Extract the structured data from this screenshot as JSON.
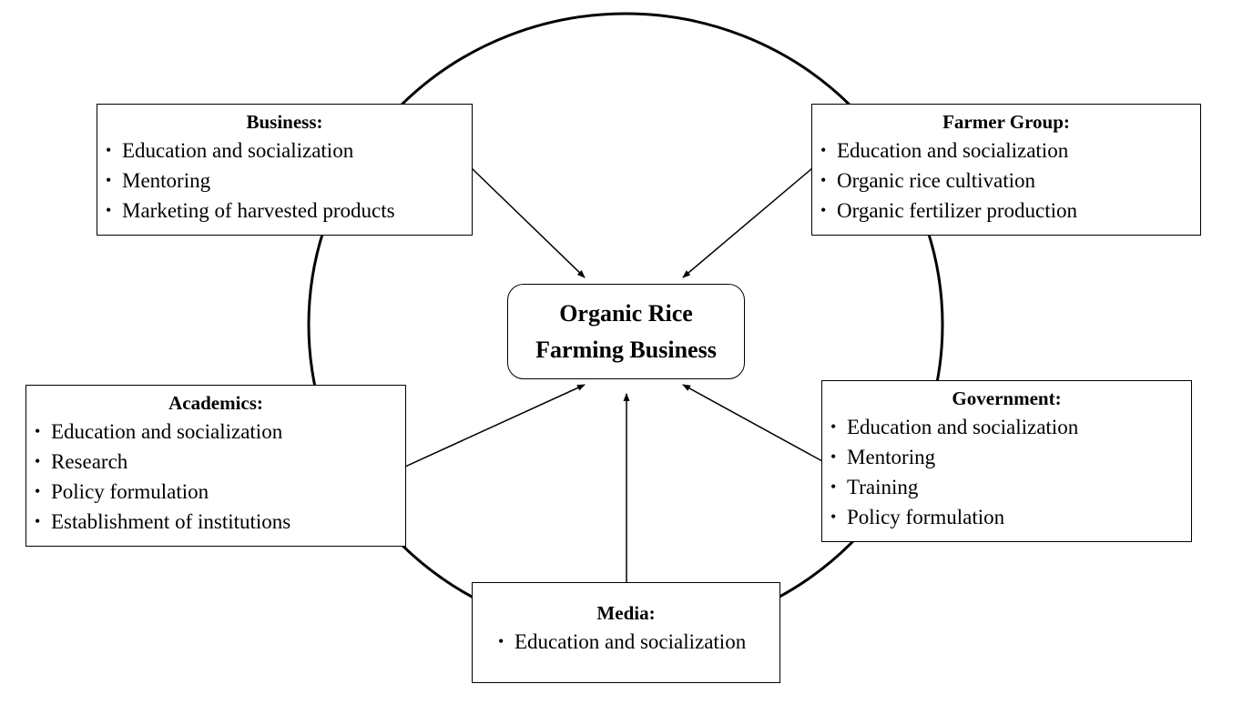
{
  "center": {
    "line1": "Organic Rice",
    "line2": "Farming Business"
  },
  "stakeholders": {
    "business": {
      "title": "Business:",
      "items": [
        "Education and socialization",
        "Mentoring",
        "Marketing of harvested products"
      ]
    },
    "farmer_group": {
      "title": "Farmer Group:",
      "items": [
        "Education and socialization",
        "Organic rice cultivation",
        "Organic fertilizer production"
      ]
    },
    "academics": {
      "title": "Academics:",
      "items": [
        "Education and socialization",
        "Research",
        "Policy formulation",
        "Establishment of institutions"
      ]
    },
    "government": {
      "title": "Government:",
      "items": [
        "Education and socialization",
        "Mentoring",
        "Training",
        "Policy formulation"
      ]
    },
    "media": {
      "title": "Media:",
      "items": [
        "Education and socialization"
      ]
    }
  },
  "colors": {
    "stroke": "#000000",
    "background": "#ffffff"
  }
}
